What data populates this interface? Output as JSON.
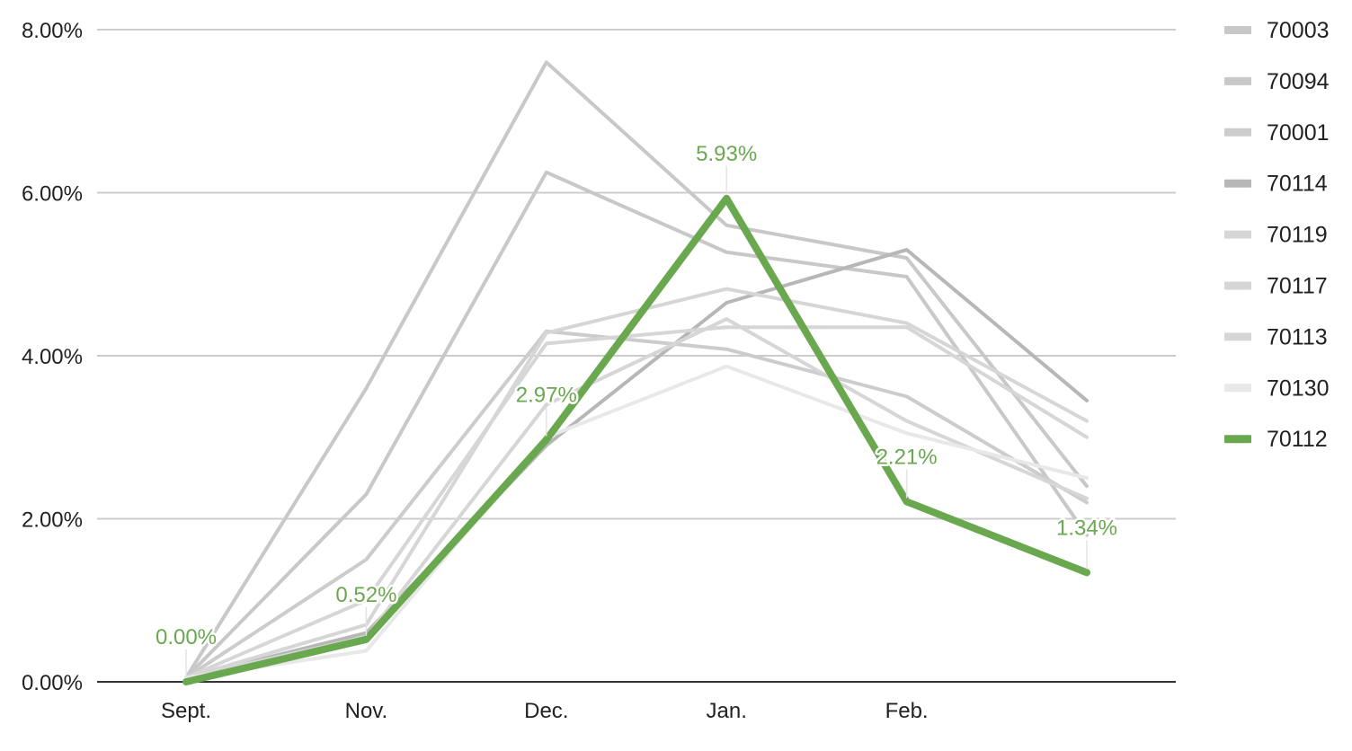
{
  "chart_data": {
    "type": "line",
    "categories": [
      "Sept.",
      "Nov.",
      "Dec.",
      "Jan.",
      "Feb.",
      ""
    ],
    "y_ticks": [
      "0.00%",
      "2.00%",
      "4.00%",
      "6.00%",
      "8.00%"
    ],
    "ylim": [
      0,
      8
    ],
    "grid": true,
    "legend_position": "right",
    "highlight_color": "#6aa84f",
    "series": [
      {
        "name": "70003",
        "color": "#c8c8c8",
        "values": [
          0.05,
          3.6,
          7.6,
          5.6,
          5.2,
          2.4
        ]
      },
      {
        "name": "70094",
        "color": "#c8c8c8",
        "values": [
          0.05,
          2.3,
          6.25,
          5.27,
          4.97,
          1.8
        ]
      },
      {
        "name": "70001",
        "color": "#cccccc",
        "values": [
          0.05,
          1.5,
          4.3,
          4.08,
          3.5,
          2.2
        ]
      },
      {
        "name": "70114",
        "color": "#b7b7b7",
        "values": [
          0.05,
          0.6,
          2.9,
          4.65,
          5.3,
          3.45
        ]
      },
      {
        "name": "70119",
        "color": "#d6d6d6",
        "values": [
          0.05,
          0.7,
          4.28,
          4.82,
          4.4,
          3.2
        ]
      },
      {
        "name": "70117",
        "color": "#d6d6d6",
        "values": [
          0.05,
          1.0,
          4.15,
          4.35,
          4.35,
          3.0
        ]
      },
      {
        "name": "70113",
        "color": "#d6d6d6",
        "values": [
          0.05,
          0.55,
          3.4,
          4.45,
          3.2,
          2.25
        ]
      },
      {
        "name": "70130",
        "color": "#e8e8e8",
        "values": [
          0.05,
          0.38,
          3.0,
          3.87,
          3.05,
          2.5
        ]
      },
      {
        "name": "70112",
        "color": "#6aa84f",
        "values": [
          0.0,
          0.52,
          2.97,
          5.93,
          2.21,
          1.34
        ],
        "labels": [
          "0.00%",
          "0.52%",
          "2.97%",
          "5.93%",
          "2.21%",
          "1.34%"
        ]
      }
    ]
  }
}
